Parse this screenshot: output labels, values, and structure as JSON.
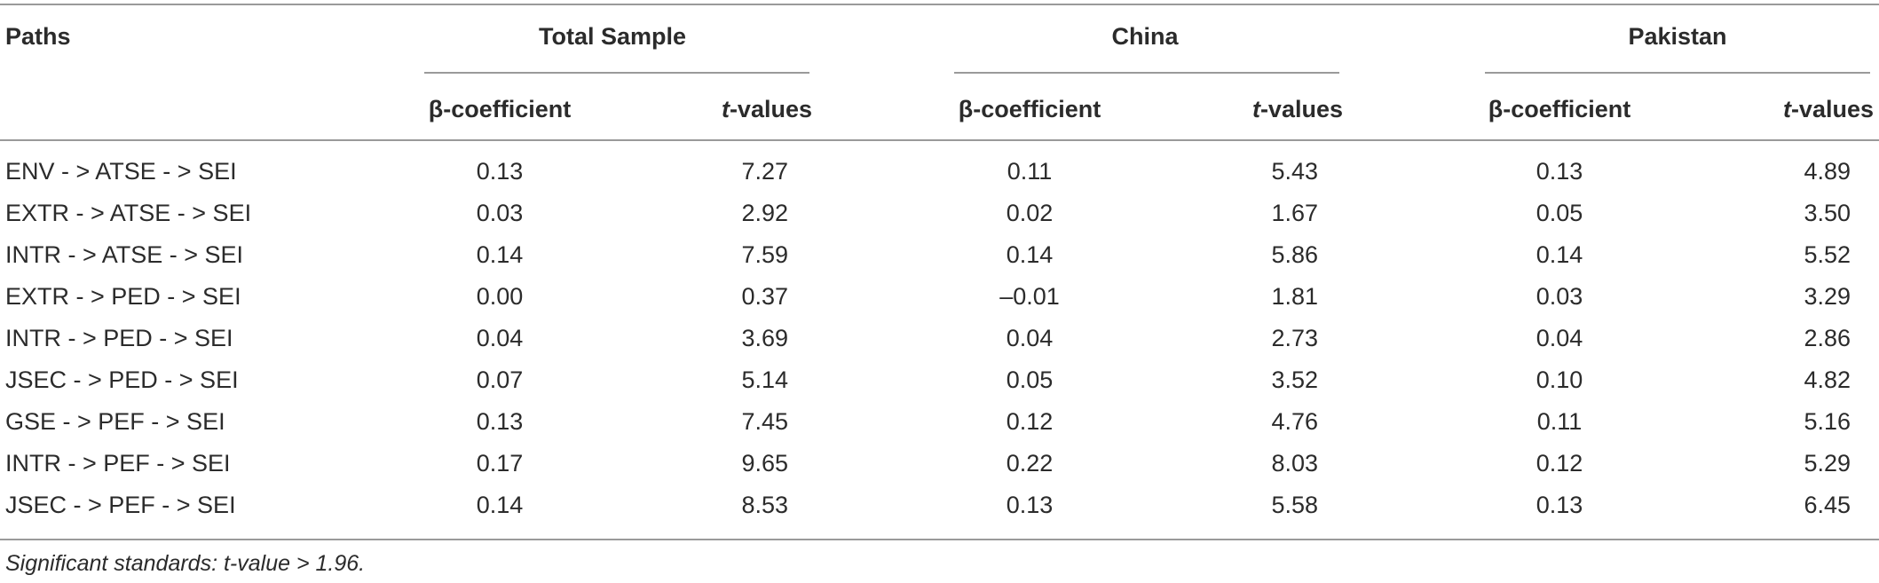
{
  "table": {
    "paths_header": "Paths",
    "groups": [
      "Total Sample",
      "China",
      "Pakistan"
    ],
    "sub_headers": {
      "beta": "β-coefficient",
      "t_prefix": "t",
      "t_suffix": "-values"
    },
    "rows": [
      {
        "path": "ENV - >  ATSE - >  SEI",
        "values": [
          "0.13",
          "7.27",
          "0.11",
          "5.43",
          "0.13",
          "4.89"
        ]
      },
      {
        "path": "EXTR - >  ATSE - >  SEI",
        "values": [
          "0.03",
          "2.92",
          "0.02",
          "1.67",
          "0.05",
          "3.50"
        ]
      },
      {
        "path": "INTR - >  ATSE - >  SEI",
        "values": [
          "0.14",
          "7.59",
          "0.14",
          "5.86",
          "0.14",
          "5.52"
        ]
      },
      {
        "path": "EXTR - >  PED - >  SEI",
        "values": [
          "0.00",
          "0.37",
          "–0.01",
          "1.81",
          "0.03",
          "3.29"
        ]
      },
      {
        "path": "INTR - >  PED - >  SEI",
        "values": [
          "0.04",
          "3.69",
          "0.04",
          "2.73",
          "0.04",
          "2.86"
        ]
      },
      {
        "path": "JSEC - >  PED - >  SEI",
        "values": [
          "0.07",
          "5.14",
          "0.05",
          "3.52",
          "0.10",
          "4.82"
        ]
      },
      {
        "path": "GSE - >  PEF - >  SEI",
        "values": [
          "0.13",
          "7.45",
          "0.12",
          "4.76",
          "0.11",
          "5.16"
        ]
      },
      {
        "path": "INTR - >  PEF - >  SEI",
        "values": [
          "0.17",
          "9.65",
          "0.22",
          "8.03",
          "0.12",
          "5.29"
        ]
      },
      {
        "path": "JSEC - >  PEF - >  SEI",
        "values": [
          "0.14",
          "8.53",
          "0.13",
          "5.58",
          "0.13",
          "6.45"
        ]
      }
    ],
    "footnote": "Significant standards: t-value > 1.96."
  }
}
